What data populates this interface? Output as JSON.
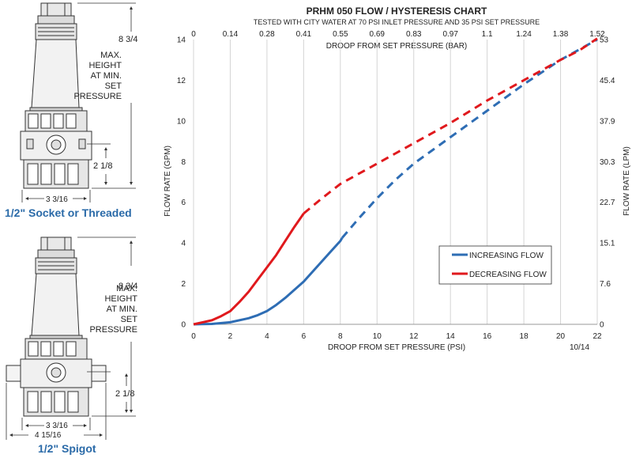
{
  "left_panel": {
    "top_caption": "1/2\" Socket or Threaded",
    "bottom_caption": "1/2\" Spigot",
    "top_dims": {
      "height": "8 3/4",
      "height_note": [
        "MAX.",
        "HEIGHT",
        "AT MIN.",
        "SET",
        "PRESSURE"
      ],
      "side": "2 1/8",
      "width": "3 3/16"
    },
    "bottom_dims": {
      "height": "8 3/4",
      "height_note": [
        "MAX.",
        "HEIGHT",
        "AT MIN.",
        "SET",
        "PRESSURE"
      ],
      "side": "2 1/8",
      "width_inner": "3 3/16",
      "width_outer": "4 15/16"
    }
  },
  "colors": {
    "increasing": "#2e6db4",
    "decreasing": "#e0191d",
    "caption": "#2a6aa8",
    "grid": "#d4d4d4"
  },
  "chart_data": {
    "type": "line",
    "title": "PRHM 050 FLOW / HYSTERESIS CHART",
    "subtitle": "TESTED WITH CITY WATER AT 70 PSI INLET PRESSURE AND 35 PSI SET PRESSURE",
    "xlabel": "DROOP FROM SET PRESSURE (PSI)",
    "x2label": "DROOP FROM SET PRESSURE (BAR)",
    "ylabel": "FLOW RATE (GPM)",
    "y2label": "FLOW RATE (LPM)",
    "xlim": [
      0,
      22
    ],
    "ylim": [
      0,
      14
    ],
    "x_ticks": [
      "0",
      "2",
      "4",
      "6",
      "8",
      "10",
      "12",
      "14",
      "16",
      "18",
      "20",
      "22"
    ],
    "y_ticks": [
      "0",
      "2",
      "4",
      "6",
      "8",
      "10",
      "12",
      "14"
    ],
    "x2_ticks": [
      "0",
      "0.14",
      "0.28",
      "0.41",
      "0.55",
      "0.69",
      "0.83",
      "0.97",
      "1.1",
      "1.24",
      "1.38",
      "1.52"
    ],
    "y2_ticks": [
      "0",
      "7.6",
      "15.1",
      "22.7",
      "30.3",
      "37.9",
      "45.4",
      "53"
    ],
    "grid": "vertical",
    "legend_position": "lower-right",
    "footnote": "10/14",
    "series": [
      {
        "name": "INCREASING FLOW",
        "color": "#2e6db4",
        "solid": {
          "x": [
            0,
            1,
            2,
            3,
            3.5,
            4,
            4.5,
            5,
            5.5,
            6,
            6.5,
            7,
            7.5,
            8,
            8.1
          ],
          "y": [
            0,
            0.02,
            0.1,
            0.3,
            0.45,
            0.65,
            0.95,
            1.3,
            1.7,
            2.1,
            2.6,
            3.1,
            3.6,
            4.1,
            4.25
          ]
        },
        "dashed": {
          "x": [
            8.1,
            9,
            10,
            11,
            12,
            13,
            14,
            15,
            16,
            17,
            18,
            19,
            20,
            21,
            22
          ],
          "y": [
            4.25,
            5.2,
            6.2,
            7.1,
            7.9,
            8.55,
            9.2,
            9.85,
            10.5,
            11.15,
            11.8,
            12.4,
            13,
            13.5,
            14
          ]
        }
      },
      {
        "name": "DECREASING FLOW",
        "color": "#e0191d",
        "solid": {
          "x": [
            0,
            1,
            1.5,
            2,
            2.5,
            3,
            3.5,
            4,
            4.5,
            5,
            5.5,
            6
          ],
          "y": [
            0,
            0.2,
            0.4,
            0.65,
            1.1,
            1.6,
            2.2,
            2.8,
            3.4,
            4.1,
            4.8,
            5.45
          ]
        },
        "dashed": {
          "x": [
            6,
            7,
            8,
            9,
            10,
            11,
            12,
            13,
            14,
            15,
            16,
            17,
            18,
            19,
            20,
            21,
            22
          ],
          "y": [
            5.45,
            6.2,
            6.9,
            7.4,
            7.9,
            8.4,
            8.9,
            9.4,
            9.9,
            10.45,
            11,
            11.5,
            12,
            12.5,
            13,
            13.45,
            14.05
          ]
        }
      }
    ]
  }
}
